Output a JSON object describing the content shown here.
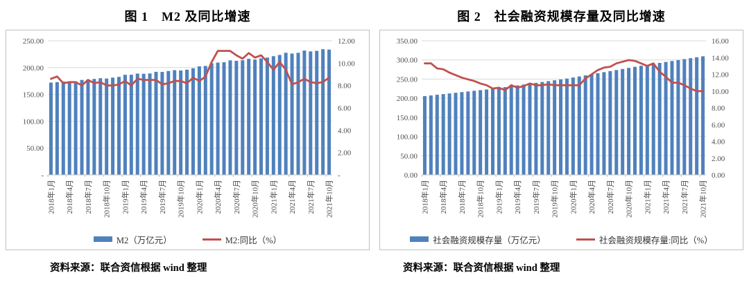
{
  "figures": [
    {
      "title": "图 1　M2 及同比增速",
      "source": "资料来源：联合资信根据 wind 整理"
    },
    {
      "title": "图 2　社会融资规模存量及同比增速",
      "source": "资料来源：联合资信根据 wind 整理"
    }
  ],
  "chart_data": [
    {
      "type": "bar",
      "subtype": "bar+line-dual-axis",
      "title": "图 1　M2 及同比增速",
      "legend_position": "bottom",
      "grid": true,
      "x_tick_every": 3,
      "categories": [
        "2018年1月",
        "2018年2月",
        "2018年3月",
        "2018年4月",
        "2018年5月",
        "2018年6月",
        "2018年7月",
        "2018年8月",
        "2018年9月",
        "2018年10月",
        "2018年11月",
        "2018年12月",
        "2019年1月",
        "2019年2月",
        "2019年3月",
        "2019年4月",
        "2019年5月",
        "2019年6月",
        "2019年7月",
        "2019年8月",
        "2019年9月",
        "2019年10月",
        "2019年11月",
        "2019年12月",
        "2020年1月",
        "2020年2月",
        "2020年3月",
        "2020年4月",
        "2020年5月",
        "2020年6月",
        "2020年7月",
        "2020年8月",
        "2020年9月",
        "2020年10月",
        "2020年11月",
        "2020年12月",
        "2021年1月",
        "2021年2月",
        "2021年3月",
        "2021年4月",
        "2021年5月",
        "2021年6月",
        "2021年7月",
        "2021年8月",
        "2021年9月",
        "2021年10月"
      ],
      "series": [
        {
          "name": "M2（万亿元）",
          "type": "bar",
          "axis": "left",
          "values": [
            172.1,
            172.9,
            174.0,
            173.8,
            174.3,
            177.0,
            177.6,
            178.9,
            180.2,
            179.6,
            181.3,
            182.7,
            186.6,
            186.7,
            188.9,
            188.5,
            189.1,
            192.1,
            191.9,
            193.6,
            195.2,
            194.6,
            196.1,
            198.7,
            202.3,
            203.1,
            208.1,
            209.4,
            210.0,
            213.5,
            212.6,
            213.7,
            216.4,
            215.0,
            217.2,
            218.7,
            221.3,
            223.6,
            227.7,
            226.2,
            227.6,
            231.8,
            230.2,
            231.2,
            234.3,
            233.6
          ]
        },
        {
          "name": "M2:同比（%）",
          "type": "line",
          "axis": "right",
          "values": [
            8.6,
            8.8,
            8.2,
            8.3,
            8.3,
            8.0,
            8.5,
            8.2,
            8.3,
            8.0,
            8.0,
            8.1,
            8.4,
            8.0,
            8.6,
            8.5,
            8.5,
            8.5,
            8.1,
            8.2,
            8.4,
            8.4,
            8.2,
            8.7,
            8.4,
            8.8,
            10.1,
            11.1,
            11.1,
            11.1,
            10.7,
            10.4,
            10.9,
            10.5,
            10.7,
            10.1,
            9.4,
            10.1,
            9.4,
            8.1,
            8.3,
            8.6,
            8.3,
            8.2,
            8.3,
            8.7
          ]
        }
      ],
      "left_axis": {
        "min": 0,
        "max": 250,
        "ticks": [
          "250.00",
          "200.00",
          "150.00",
          "100.00",
          "50.00",
          "-"
        ]
      },
      "right_axis": {
        "min": 0,
        "max": 12,
        "ticks": [
          "12.00",
          "10.00",
          "8.00",
          "6.00",
          "4.00",
          "2.00",
          "-"
        ]
      },
      "colors": {
        "bar": "#4F81BD",
        "line": "#C0504D",
        "grid": "#D9D9D9",
        "axis": "#BFBFBF"
      }
    },
    {
      "type": "bar",
      "subtype": "bar+line-dual-axis",
      "title": "图 2　社会融资规模存量及同比增速",
      "legend_position": "bottom",
      "grid": true,
      "x_tick_every": 3,
      "categories": [
        "2018年1月",
        "2018年2月",
        "2018年3月",
        "2018年4月",
        "2018年5月",
        "2018年6月",
        "2018年7月",
        "2018年8月",
        "2018年9月",
        "2018年10月",
        "2018年11月",
        "2018年12月",
        "2019年1月",
        "2019年2月",
        "2019年3月",
        "2019年4月",
        "2019年5月",
        "2019年6月",
        "2019年7月",
        "2019年8月",
        "2019年9月",
        "2019年10月",
        "2019年11月",
        "2019年12月",
        "2020年1月",
        "2020年2月",
        "2020年3月",
        "2020年4月",
        "2020年5月",
        "2020年6月",
        "2020年7月",
        "2020年8月",
        "2020年9月",
        "2020年10月",
        "2020年11月",
        "2020年12月",
        "2021年1月",
        "2021年2月",
        "2021年3月",
        "2021年4月",
        "2021年5月",
        "2021年6月",
        "2021年7月",
        "2021年8月",
        "2021年9月",
        "2021年10月"
      ],
      "series": [
        {
          "name": "社会融资规模存量（万亿元）",
          "type": "bar",
          "axis": "left",
          "values": [
            205.6,
            207.3,
            209.1,
            210.8,
            212.5,
            214.3,
            216.0,
            217.7,
            219.5,
            221.2,
            222.9,
            224.7,
            226.9,
            229.1,
            231.3,
            233.5,
            235.8,
            238.0,
            240.2,
            242.4,
            244.6,
            246.9,
            249.1,
            251.3,
            254.1,
            256.9,
            259.7,
            262.5,
            265.3,
            268.1,
            270.9,
            273.6,
            276.4,
            279.2,
            282.0,
            284.8,
            287.3,
            289.7,
            292.2,
            294.7,
            297.2,
            299.6,
            302.1,
            304.6,
            307.0,
            309.5
          ]
        },
        {
          "name": "社会融资规模存量:同比（%）",
          "type": "line",
          "axis": "right",
          "values": [
            13.3,
            13.3,
            12.7,
            12.6,
            12.2,
            11.9,
            11.6,
            11.4,
            11.2,
            10.9,
            10.7,
            10.3,
            10.4,
            10.1,
            10.7,
            10.4,
            10.6,
            10.9,
            10.7,
            10.7,
            10.8,
            10.7,
            10.7,
            10.7,
            10.7,
            10.7,
            11.5,
            12.0,
            12.5,
            12.8,
            12.9,
            13.3,
            13.5,
            13.7,
            13.6,
            13.3,
            13.0,
            13.3,
            12.3,
            11.7,
            11.0,
            11.0,
            10.7,
            10.3,
            10.0,
            10.0
          ]
        }
      ],
      "left_axis": {
        "min": 0,
        "max": 350,
        "ticks": [
          "350.00",
          "300.00",
          "250.00",
          "200.00",
          "150.00",
          "100.00",
          "50.00",
          "0.00"
        ]
      },
      "right_axis": {
        "min": 0,
        "max": 16,
        "ticks": [
          "16.00",
          "14.00",
          "12.00",
          "10.00",
          "8.00",
          "6.00",
          "4.00",
          "2.00",
          "0.00"
        ]
      },
      "colors": {
        "bar": "#4F81BD",
        "line": "#C0504D",
        "grid": "#D9D9D9",
        "axis": "#BFBFBF"
      }
    }
  ]
}
